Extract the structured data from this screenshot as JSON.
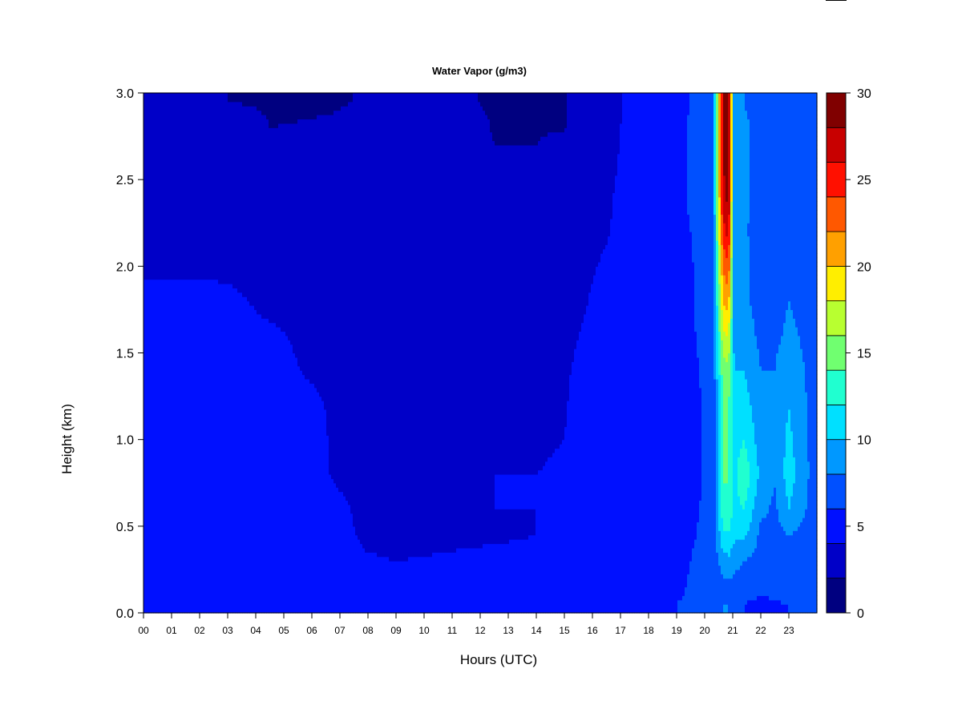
{
  "chart_data": {
    "type": "heatmap",
    "title": "Water Vapor (g/m3)",
    "xlabel": "Hours (UTC)",
    "ylabel": "Height (km)",
    "x_tick_labels": [
      "00",
      "01",
      "02",
      "03",
      "04",
      "05",
      "06",
      "07",
      "08",
      "09",
      "10",
      "11",
      "12",
      "13",
      "14",
      "15",
      "16",
      "17",
      "18",
      "19",
      "20",
      "21",
      "22",
      "23"
    ],
    "x_range_hours": [
      0,
      24
    ],
    "y_ticks": [
      "0.0",
      "0.5",
      "1.0",
      "1.5",
      "2.0",
      "2.5",
      "3.0"
    ],
    "y_range_km": [
      0,
      3
    ],
    "colorbar": {
      "levels": [
        0,
        2,
        4,
        6,
        8,
        10,
        12,
        14,
        16,
        18,
        20,
        22,
        24,
        26,
        28,
        30
      ],
      "tick_labels": [
        "0",
        "5",
        "10",
        "15",
        "20",
        "25",
        "30"
      ],
      "colors": [
        "#000080",
        "#0000c8",
        "#0010ff",
        "#0050ff",
        "#0098ff",
        "#00e0ff",
        "#20ffd0",
        "#70ff70",
        "#b8ff30",
        "#ffee00",
        "#ffa000",
        "#ff5800",
        "#ff1000",
        "#c80000",
        "#800000"
      ]
    },
    "profile_heights_km": [
      0.05,
      0.15,
      0.3,
      0.45,
      0.6,
      0.8,
      1.0,
      1.2,
      1.4,
      1.6,
      1.8,
      2.0,
      2.2,
      2.4,
      2.6,
      2.8,
      2.95
    ],
    "profiles": [
      {
        "hour": 0,
        "values": [
          4.6,
          4.6,
          4.6,
          4.6,
          4.5,
          4.5,
          4.5,
          4.5,
          4.5,
          4.5,
          4.5,
          3.7,
          3.6,
          3.5,
          3.5,
          3.4,
          3.3
        ]
      },
      {
        "hour": 2,
        "values": [
          4.6,
          4.6,
          4.6,
          4.6,
          4.5,
          4.5,
          4.5,
          4.5,
          4.5,
          4.5,
          4.4,
          3.8,
          3.6,
          3.5,
          3.5,
          3.4,
          2.0
        ]
      },
      {
        "hour": 3,
        "values": [
          4.6,
          4.6,
          4.6,
          4.6,
          4.5,
          4.5,
          4.5,
          4.5,
          4.5,
          4.4,
          4.3,
          3.7,
          3.6,
          3.5,
          3.4,
          3.3,
          2.0
        ]
      },
      {
        "hour": 4.5,
        "values": [
          4.6,
          4.6,
          4.6,
          4.6,
          4.5,
          4.5,
          4.5,
          4.5,
          4.5,
          4.2,
          3.7,
          3.6,
          3.5,
          3.4,
          3.3,
          2.0,
          1.8
        ]
      },
      {
        "hour": 6,
        "values": [
          4.6,
          4.6,
          4.6,
          4.6,
          4.5,
          4.5,
          4.5,
          4.3,
          3.8,
          3.7,
          3.6,
          3.6,
          3.5,
          3.4,
          3.3,
          2.1,
          1.8
        ]
      },
      {
        "hour": 6.9,
        "values": [
          4.6,
          4.6,
          4.6,
          4.6,
          4.3,
          3.8,
          3.7,
          3.7,
          3.6,
          3.6,
          3.6,
          3.5,
          3.4,
          3.4,
          3.3,
          2.3,
          1.8
        ]
      },
      {
        "hour": 8,
        "values": [
          4.6,
          4.5,
          4.2,
          3.6,
          3.6,
          3.6,
          3.6,
          3.6,
          3.6,
          3.6,
          3.6,
          3.5,
          3.4,
          3.4,
          3.3,
          3.2,
          2.2
        ]
      },
      {
        "hour": 9,
        "values": [
          4.6,
          4.5,
          4.0,
          3.5,
          3.6,
          3.6,
          3.6,
          3.6,
          3.6,
          3.6,
          3.6,
          3.5,
          3.4,
          3.4,
          3.3,
          3.3,
          3.0
        ]
      },
      {
        "hour": 10,
        "values": [
          4.6,
          4.5,
          4.1,
          3.6,
          3.6,
          3.6,
          3.6,
          3.6,
          3.6,
          3.6,
          3.6,
          3.5,
          3.4,
          3.4,
          3.3,
          3.3,
          3.0
        ]
      },
      {
        "hour": 11.5,
        "values": [
          4.6,
          4.5,
          4.2,
          3.8,
          3.9,
          3.9,
          3.8,
          3.7,
          3.6,
          3.6,
          3.6,
          3.5,
          3.5,
          3.4,
          3.4,
          3.2,
          2.2
        ]
      },
      {
        "hour": 12.5,
        "values": [
          4.6,
          4.5,
          4.2,
          3.9,
          4.0,
          4.0,
          3.9,
          3.8,
          3.7,
          3.6,
          3.6,
          3.5,
          3.5,
          3.4,
          2.2,
          1.8,
          1.7
        ]
      },
      {
        "hour": 14,
        "values": [
          4.6,
          4.5,
          4.2,
          4.0,
          4.0,
          4.0,
          3.9,
          3.8,
          3.7,
          3.7,
          3.6,
          3.6,
          3.5,
          3.4,
          2.2,
          1.8,
          1.7
        ]
      },
      {
        "hour": 15,
        "values": [
          4.6,
          4.5,
          4.3,
          4.1,
          4.1,
          4.1,
          4.0,
          3.9,
          3.8,
          3.7,
          3.7,
          3.6,
          3.5,
          3.4,
          3.3,
          1.9,
          1.8
        ]
      },
      {
        "hour": 15.7,
        "values": [
          4.6,
          4.6,
          4.6,
          4.6,
          4.5,
          4.5,
          4.5,
          4.5,
          4.4,
          4.1,
          3.9,
          3.7,
          3.6,
          3.5,
          3.4,
          3.3,
          3.2
        ]
      },
      {
        "hour": 16.5,
        "values": [
          4.6,
          4.6,
          4.6,
          4.6,
          4.6,
          4.6,
          4.5,
          4.5,
          4.5,
          4.5,
          4.5,
          4.2,
          3.9,
          3.8,
          3.6,
          3.5,
          3.4
        ]
      },
      {
        "hour": 17.3,
        "values": [
          4.6,
          4.6,
          4.6,
          4.6,
          4.6,
          4.6,
          4.6,
          4.6,
          4.6,
          4.6,
          4.6,
          4.6,
          4.5,
          4.5,
          4.4,
          4.3,
          4.2
        ]
      },
      {
        "hour": 18.5,
        "values": [
          5.5,
          4.8,
          4.8,
          4.8,
          4.8,
          4.8,
          4.8,
          4.8,
          4.8,
          4.8,
          4.8,
          4.8,
          4.8,
          4.8,
          4.8,
          4.8,
          4.8
        ]
      },
      {
        "hour": 19.5,
        "values": [
          6.5,
          6.2,
          6.0,
          5.8,
          5.6,
          5.5,
          5.4,
          5.4,
          5.6,
          5.8,
          5.9,
          5.9,
          6.0,
          6.2,
          6.2,
          6.2,
          6.0
        ]
      },
      {
        "hour": 20.3,
        "values": [
          7.0,
          6.8,
          6.8,
          6.6,
          6.6,
          6.5,
          6.6,
          6.6,
          6.7,
          6.7,
          6.7,
          6.7,
          6.9,
          6.9,
          6.9,
          6.9,
          6.8
        ]
      },
      {
        "hour": 20.65,
        "values": [
          8.0,
          7.5,
          9.0,
          11.5,
          13.0,
          14.5,
          14.0,
          14.0,
          15.0,
          17.5,
          20.0,
          22.0,
          25.0,
          27.0,
          28.0,
          28.0,
          28.0
        ]
      },
      {
        "hour": 20.85,
        "values": [
          8.0,
          7.5,
          9.5,
          12.0,
          13.5,
          14.0,
          14.0,
          14.0,
          15.5,
          18.0,
          21.0,
          24.0,
          27.0,
          29.0,
          29.0,
          29.0,
          29.0
        ]
      },
      {
        "hour": 21.05,
        "values": [
          7.5,
          7.5,
          8.5,
          10.5,
          11.5,
          11.5,
          11.0,
          10.5,
          10.0,
          9.5,
          9.0,
          8.5,
          8.5,
          8.8,
          9.0,
          9.0,
          8.5
        ]
      },
      {
        "hour": 21.4,
        "values": [
          6.0,
          7.0,
          8.0,
          10.5,
          12.0,
          13.5,
          12.0,
          11.0,
          10.0,
          9.0,
          8.5,
          8.5,
          8.4,
          8.5,
          8.6,
          8.6,
          8.0
        ]
      },
      {
        "hour": 22,
        "values": [
          5.5,
          6.5,
          7.2,
          7.5,
          8.5,
          9.5,
          9.0,
          8.5,
          8.0,
          7.5,
          7.2,
          7.0,
          6.8,
          6.9,
          6.9,
          6.9,
          6.7
        ]
      },
      {
        "hour": 22.5,
        "values": [
          5.8,
          6.6,
          7.0,
          7.2,
          7.6,
          8.3,
          8.4,
          8.2,
          8.0,
          7.5,
          7.2,
          7.0,
          6.9,
          7.1,
          7.0,
          6.6,
          6.2
        ]
      },
      {
        "hour": 23,
        "values": [
          6.0,
          6.8,
          7.2,
          8.0,
          10.0,
          11.0,
          10.5,
          10.0,
          9.5,
          8.5,
          8.0,
          7.5,
          7.2,
          7.2,
          7.1,
          6.6,
          6.0
        ]
      },
      {
        "hour": 23.8,
        "values": [
          6.5,
          7.0,
          7.1,
          7.2,
          7.4,
          7.6,
          7.6,
          7.5,
          7.4,
          7.3,
          7.2,
          7.1,
          7.0,
          6.9,
          6.8,
          6.6,
          6.0
        ]
      }
    ]
  }
}
